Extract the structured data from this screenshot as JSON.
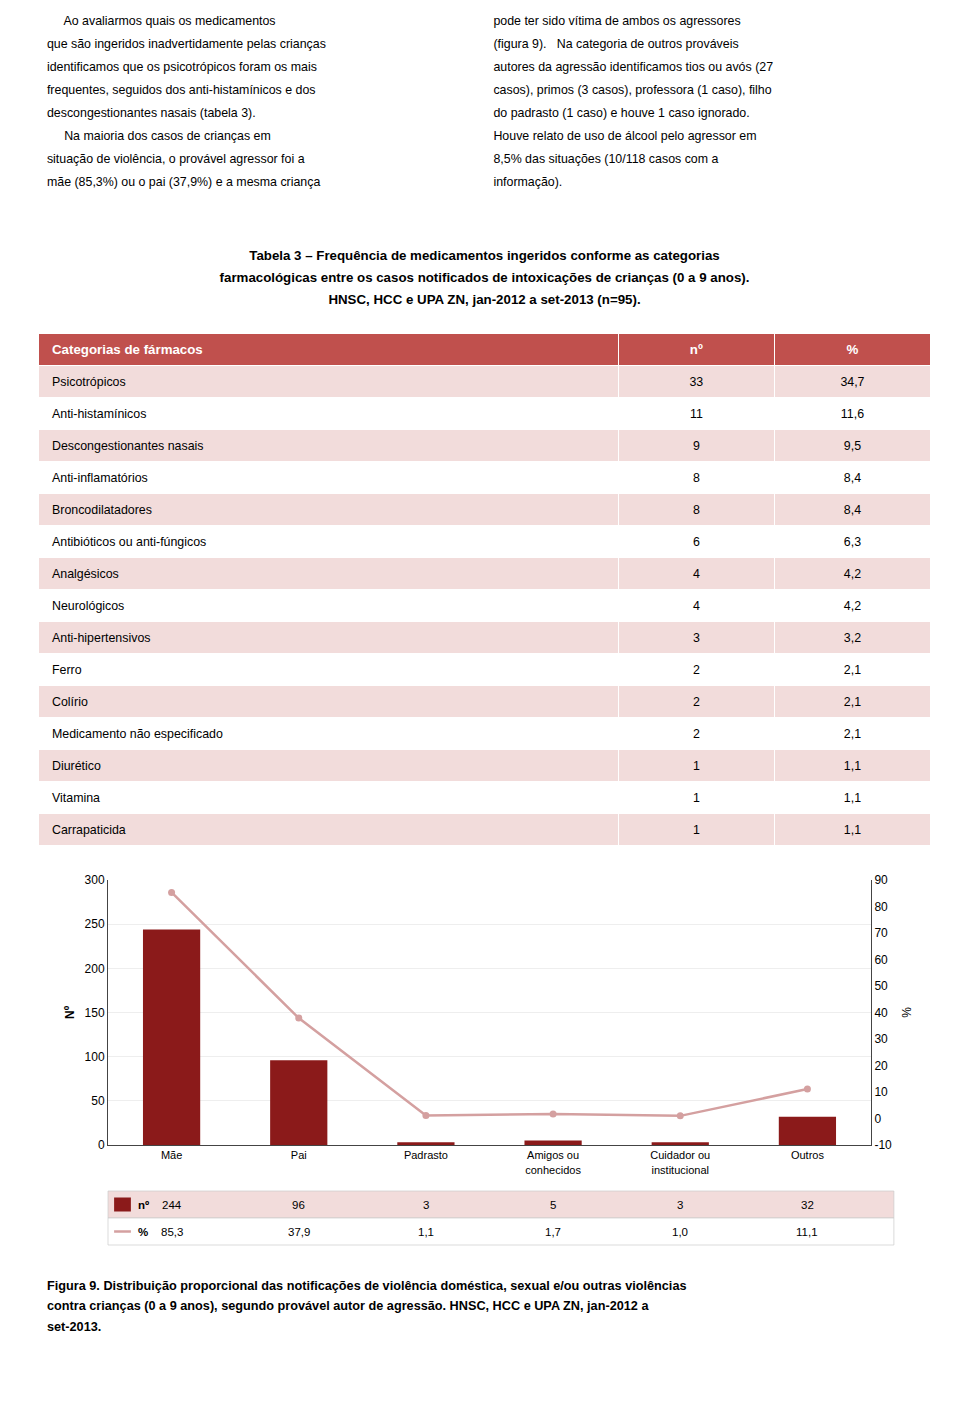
{
  "text_columns": [
    "     Ao avaliarmos quais os medicamentos\nque são ingeridos inadvertidamente pelas crianças\nidentificamos que os psicotrópicos foram os mais\nfrequentes, seguidos dos anti-histamínicos e dos\ndescongestionantes nasais (tabela 3).\n     Na maioria dos casos de crianças em\nsituação de violência, o provável agressor foi a\nmãe (85,3%) ou o pai (37,9%) e a mesma criança",
    "pode ter sido vítima de ambos os agressores\n(figura 9).   Na categoria de outros prováveis\nautores da agressão identificamos tios ou avós (27\ncasos), primos (3 casos), professora (1 caso), filho\ndo padrasto (1 caso) e houve 1 caso ignorado.\nHouve relato de uso de álcool pelo agressor em\n8,5% das situações (10/118 casos com a\ninformação)."
  ],
  "table": {
    "title": "Tabela 3 – Frequência de medicamentos ingeridos conforme as categorias\nfarmacológicas entre os casos notificados de intoxicações de crianças (0 a 9 anos).\nHNSC, HCC e UPA ZN, jan-2012 a set-2013 (n=95).",
    "header": [
      "Categorias de fármacos",
      "nº",
      "%"
    ],
    "header_color": "#c0504d",
    "row_colors": [
      "#f2dcdb",
      "#ffffff"
    ],
    "rows": [
      [
        "Psicotrópicos",
        "33",
        "34,7"
      ],
      [
        "Anti-histamínicos",
        "11",
        "11,6"
      ],
      [
        "Descongestionantes nasais",
        "9",
        "9,5"
      ],
      [
        "Anti-inflamatórios",
        "8",
        "8,4"
      ],
      [
        "Broncodilatadores",
        "8",
        "8,4"
      ],
      [
        "Antibióticos ou anti-fúngicos",
        "6",
        "6,3"
      ],
      [
        "Analgésicos",
        "4",
        "4,2"
      ],
      [
        "Neurológicos",
        "4",
        "4,2"
      ],
      [
        "Anti-hipertensivos",
        "3",
        "3,2"
      ],
      [
        "Ferro",
        "2",
        "2,1"
      ],
      [
        "Colírio",
        "2",
        "2,1"
      ],
      [
        "Medicamento não especificado",
        "2",
        "2,1"
      ],
      [
        "Diurético",
        "1",
        "1,1"
      ],
      [
        "Vitamina",
        "1",
        "1,1"
      ],
      [
        "Carrapaticida",
        "1",
        "1,1"
      ]
    ]
  },
  "chart_data": {
    "type": "bar",
    "categories": [
      "Mãe",
      "Pai",
      "Padrasto",
      "Amigos ou\nconhecidos",
      "Cuidador ou\ninstitucional",
      "Outros"
    ],
    "series": [
      {
        "name": "nº",
        "type": "bar",
        "color": "#8b1a1a",
        "values": [
          244,
          96,
          3,
          5,
          3,
          32
        ]
      },
      {
        "name": "%",
        "type": "line",
        "axis": "y2",
        "color": "#d4a0a0",
        "marker": "circle",
        "values": [
          85.3,
          37.9,
          1.1,
          1.7,
          1.0,
          11.1
        ],
        "value_labels": [
          "85,3",
          "37,9",
          "1,1",
          "1,7",
          "1,0",
          "11,1"
        ]
      }
    ],
    "ylabel": "Nº",
    "y2label": "%",
    "ylim": [
      0,
      300
    ],
    "yticks": [
      0,
      50,
      100,
      150,
      200,
      250,
      300
    ],
    "y2lim": [
      -10,
      90
    ],
    "y2ticks": [
      -10,
      0,
      10,
      20,
      30,
      40,
      50,
      60,
      70,
      80,
      90
    ],
    "grid": true
  },
  "caption": "Figura 9. Distribuição proporcional das notificações de violência doméstica, sexual e/ou outras violências\ncontra crianças (0 a 9 anos), segundo provável autor de agressão. HNSC, HCC e UPA ZN, jan-2012 a\nset-2013."
}
